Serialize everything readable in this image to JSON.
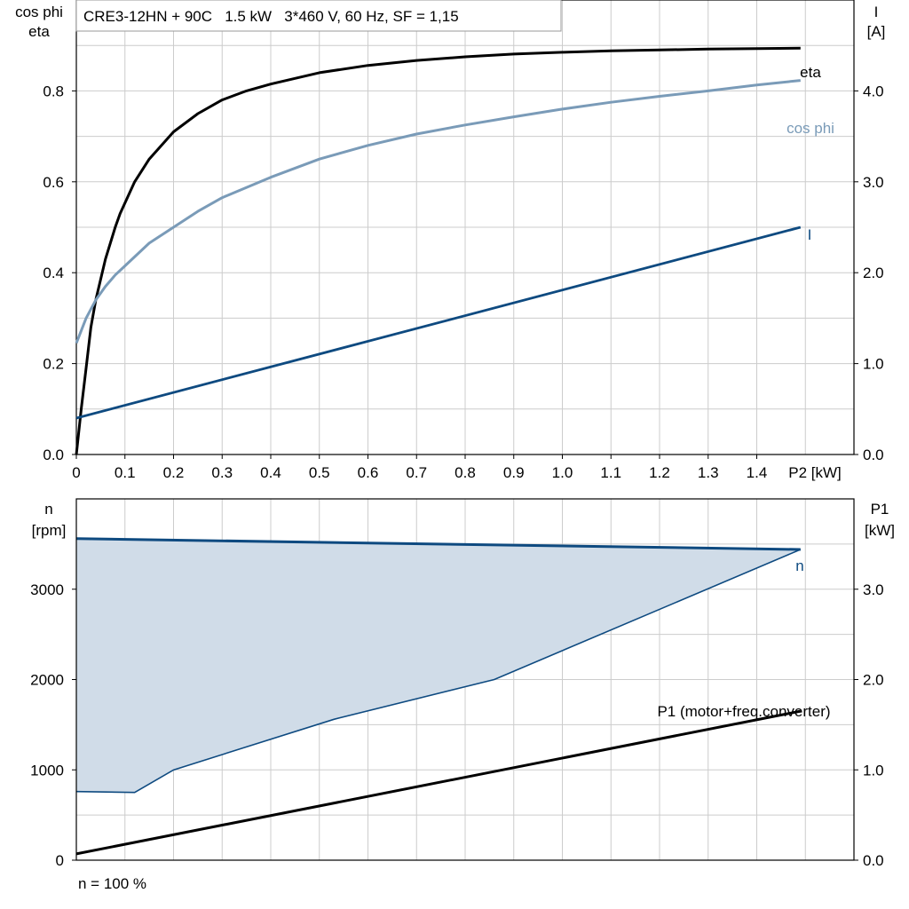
{
  "colors": {
    "eta": "#000000",
    "cosphi": "#7a9bb8",
    "current": "#0e4a80",
    "speed": "#0e4a80",
    "fill": "#d0dce8",
    "grid": "#cccccc",
    "p1": "#000000"
  },
  "chart_data": [
    {
      "type": "line",
      "title": "CRE3-12HN + 90C   1.5 kW   3*460 V, 60 Hz, SF = 1,15",
      "ylabel_left_line1": "cos phi",
      "ylabel_left_line2": "eta",
      "ylabel_right_line1": "I",
      "ylabel_right_line2": "[A]",
      "xlabel_unit": "P2 [kW]",
      "xlim": [
        0,
        1.6
      ],
      "ylim_left": [
        0,
        1.0
      ],
      "ylim_right": [
        0,
        5.0
      ],
      "x_ticks": [
        "0",
        "0.1",
        "0.2",
        "0.3",
        "0.4",
        "0.5",
        "0.6",
        "0.7",
        "0.8",
        "0.9",
        "1.0",
        "1.1",
        "1.2",
        "1.3",
        "1.4"
      ],
      "y_left_ticks": [
        "0.0",
        "0.2",
        "0.4",
        "0.6",
        "0.8"
      ],
      "y_right_ticks": [
        "0.0",
        "1.0",
        "2.0",
        "3.0",
        "4.0"
      ],
      "grid": true,
      "series": [
        {
          "name": "eta",
          "axis": "left",
          "x": [
            0,
            0.01,
            0.02,
            0.03,
            0.04,
            0.06,
            0.08,
            0.09,
            0.12,
            0.15,
            0.2,
            0.25,
            0.3,
            0.35,
            0.4,
            0.5,
            0.6,
            0.7,
            0.8,
            0.9,
            1.0,
            1.1,
            1.2,
            1.3,
            1.4,
            1.49
          ],
          "y": [
            0.0,
            0.1,
            0.19,
            0.28,
            0.34,
            0.43,
            0.5,
            0.53,
            0.6,
            0.65,
            0.71,
            0.75,
            0.78,
            0.8,
            0.815,
            0.84,
            0.856,
            0.867,
            0.875,
            0.881,
            0.885,
            0.888,
            0.89,
            0.892,
            0.893,
            0.894
          ]
        },
        {
          "name": "cos phi",
          "axis": "left",
          "x": [
            0,
            0.02,
            0.04,
            0.06,
            0.08,
            0.1,
            0.15,
            0.2,
            0.25,
            0.3,
            0.4,
            0.5,
            0.6,
            0.7,
            0.8,
            0.9,
            1.0,
            1.1,
            1.2,
            1.3,
            1.4,
            1.49
          ],
          "y": [
            0.245,
            0.3,
            0.34,
            0.37,
            0.395,
            0.415,
            0.465,
            0.5,
            0.535,
            0.565,
            0.61,
            0.65,
            0.68,
            0.705,
            0.725,
            0.743,
            0.76,
            0.775,
            0.788,
            0.8,
            0.813,
            0.823
          ]
        },
        {
          "name": "I",
          "axis": "right",
          "x": [
            0,
            1.49
          ],
          "y": [
            0.4,
            2.5
          ]
        }
      ]
    },
    {
      "type": "area",
      "ylabel_left_line1": "n",
      "ylabel_left_line2": "[rpm]",
      "ylabel_right_line1": "P1",
      "ylabel_right_line2": "[kW]",
      "footer": "n = 100 %",
      "xlim": [
        0,
        1.6
      ],
      "ylim_left": [
        0,
        4000
      ],
      "ylim_right": [
        0,
        4.0
      ],
      "y_left_ticks": [
        "0",
        "1000",
        "2000",
        "3000"
      ],
      "y_right_ticks": [
        "0.0",
        "1.0",
        "2.0",
        "3.0"
      ],
      "grid": true,
      "series": [
        {
          "name": "n",
          "axis": "left",
          "role": "max-speed",
          "x": [
            0,
            1.49
          ],
          "y": [
            3560,
            3440
          ]
        },
        {
          "name": "",
          "axis": "left",
          "role": "min-speed",
          "x": [
            0,
            0.12,
            0.2,
            0.53,
            0.86,
            1.49
          ],
          "y": [
            760,
            750,
            1000,
            1560,
            2000,
            3440
          ]
        },
        {
          "name": "P1 (motor+freq.converter)",
          "axis": "right",
          "x": [
            0,
            1.49
          ],
          "y": [
            0.07,
            1.65
          ]
        }
      ]
    }
  ]
}
